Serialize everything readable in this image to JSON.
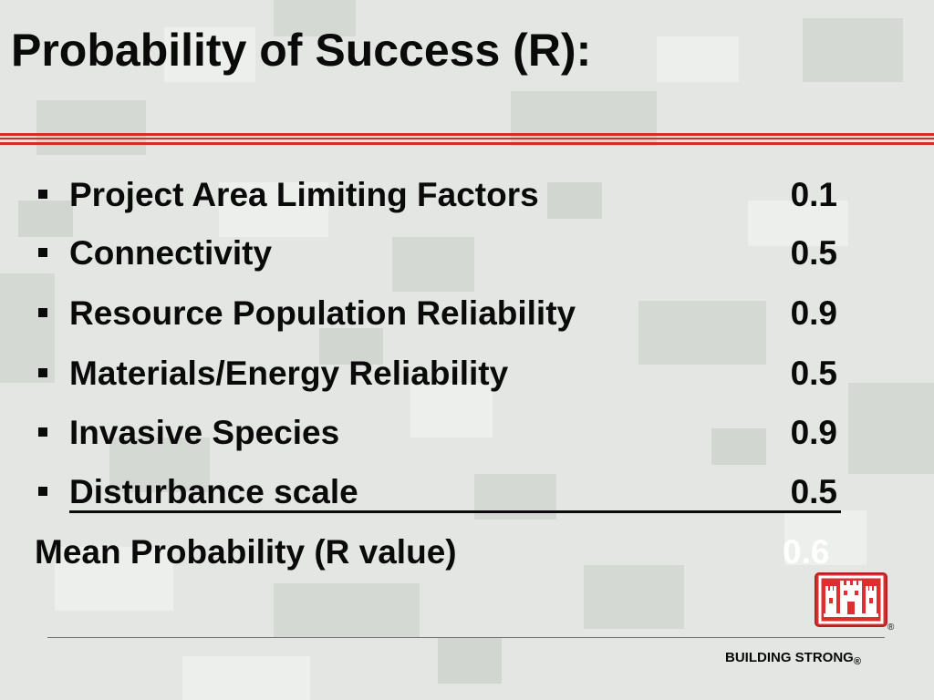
{
  "title": "Probability of Success (R):",
  "colors": {
    "accent_red": "#d62b2b",
    "text": "#0a0a0a",
    "mean_value": "#ffffff",
    "logo_red": "#d93030"
  },
  "factors": [
    {
      "label": "Project Area Limiting Factors",
      "value": "0.1"
    },
    {
      "label": "Connectivity",
      "value": "0.5"
    },
    {
      "label": "Resource Population Reliability",
      "value": "0.9"
    },
    {
      "label": "Materials/Energy Reliability",
      "value": "0.5"
    },
    {
      "label": "Invasive Species",
      "value": "0.9"
    },
    {
      "label": "Disturbance scale",
      "value": "0.5"
    }
  ],
  "mean": {
    "label": "Mean Probability (R value)",
    "value": "0.6"
  },
  "footer": {
    "text": "BUILDING STRONG",
    "reg": "®"
  },
  "logo": {
    "icon": "castle-icon",
    "reg": "®"
  }
}
